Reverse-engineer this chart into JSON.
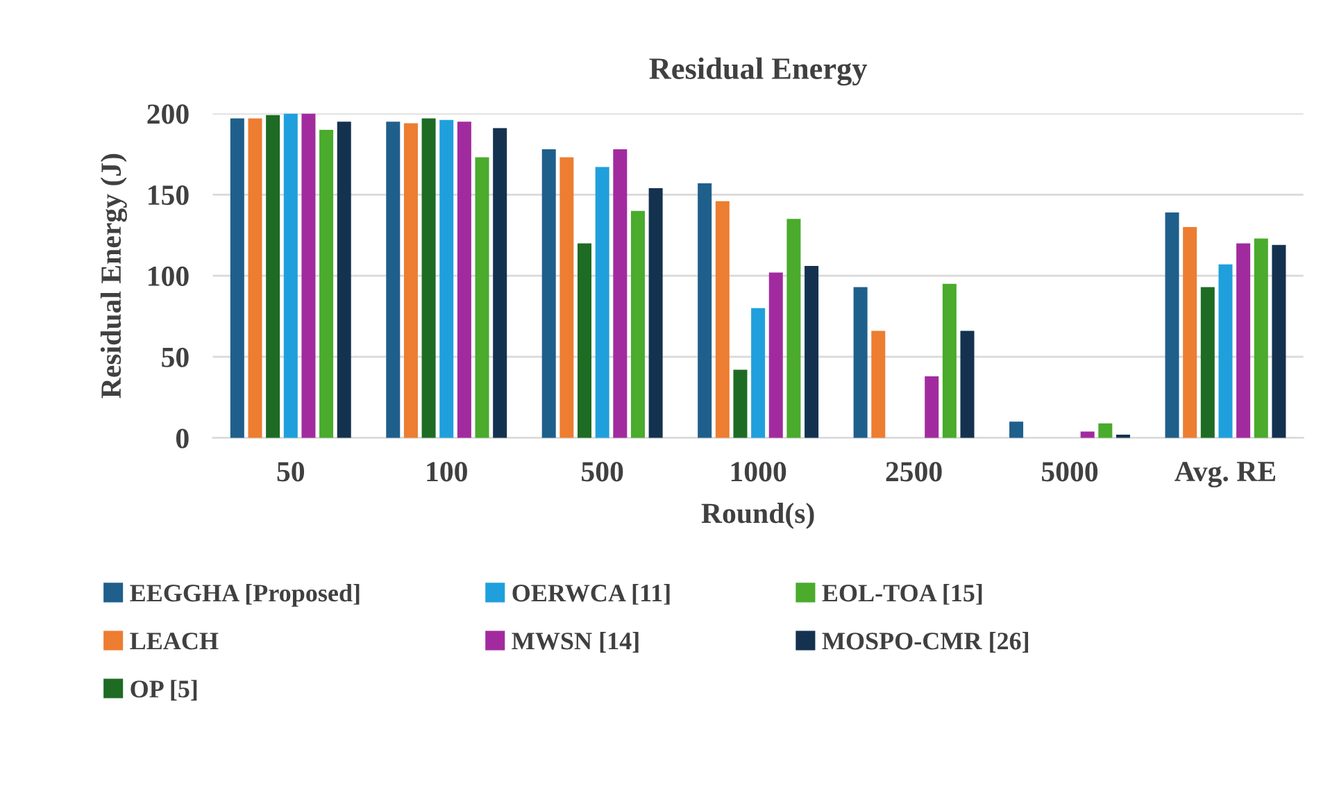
{
  "chart_data": {
    "type": "bar",
    "title": "Residual Energy",
    "xlabel": "Round(s)",
    "ylabel": "Residual Energy (J)",
    "categories": [
      "50",
      "100",
      "500",
      "1000",
      "2500",
      "5000",
      "Avg. RE"
    ],
    "series": [
      {
        "name": "EEGGHA [Proposed]",
        "color": "#1f5f8b",
        "values": [
          197,
          195,
          178,
          157,
          93,
          10,
          139
        ]
      },
      {
        "name": "LEACH",
        "color": "#ed7d31",
        "values": [
          197,
          194,
          173,
          146,
          66,
          0,
          130
        ]
      },
      {
        "name": "OP [5]",
        "color": "#1e6b24",
        "values": [
          199,
          197,
          120,
          42,
          0,
          0,
          93
        ]
      },
      {
        "name": "OERWCA [11]",
        "color": "#1fa0dc",
        "values": [
          200,
          196,
          167,
          80,
          0,
          0,
          107
        ]
      },
      {
        "name": "MWSN [14]",
        "color": "#a12b9e",
        "values": [
          200,
          195,
          178,
          102,
          38,
          4,
          120
        ]
      },
      {
        "name": "EOL-TOA [15]",
        "color": "#4aab2c",
        "values": [
          190,
          173,
          140,
          135,
          95,
          9,
          123
        ]
      },
      {
        "name": "MOSPO-CMR [26]",
        "color": "#14324f",
        "values": [
          195,
          191,
          154,
          106,
          66,
          2,
          119
        ]
      }
    ],
    "ylim": [
      0,
      200
    ],
    "yticks": [
      0,
      50,
      100,
      150,
      200
    ],
    "grid": "y",
    "legend": "bottom"
  }
}
